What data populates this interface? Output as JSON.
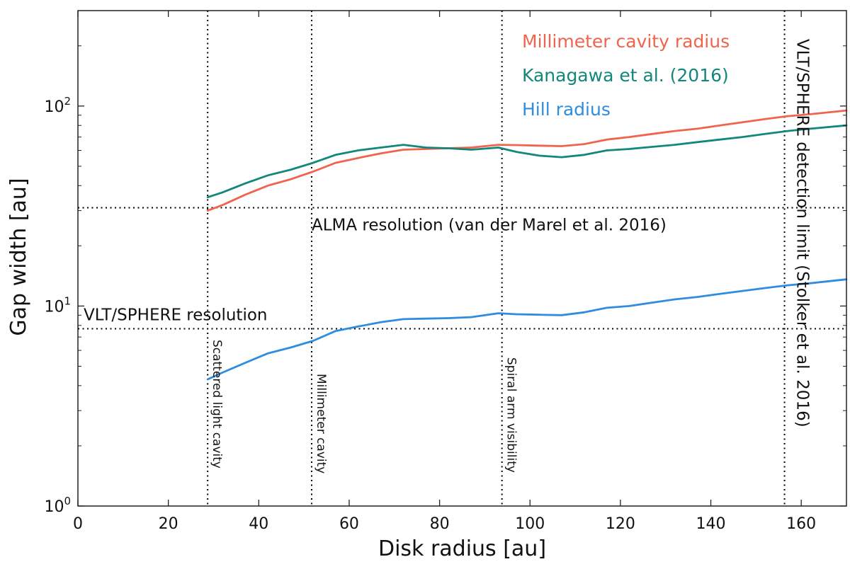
{
  "chart_data": {
    "type": "line",
    "xlabel": "Disk radius [au]",
    "ylabel": "Gap width [au]",
    "xlim": [
      0,
      170
    ],
    "ylim": [
      1,
      300
    ],
    "yscale": "log",
    "xticks": [
      0,
      20,
      40,
      60,
      80,
      100,
      120,
      140,
      160
    ],
    "yticks": [
      {
        "value": 1,
        "base": "10",
        "exp": "0"
      },
      {
        "value": 10,
        "base": "10",
        "exp": "1"
      },
      {
        "value": 100,
        "base": "10",
        "exp": "2"
      }
    ],
    "series": [
      {
        "name": "Millimeter cavity radius",
        "color": "#f0644e",
        "x": [
          28.7,
          32,
          37,
          42,
          47,
          52,
          57,
          62,
          67,
          72,
          77,
          82,
          87,
          93,
          97,
          102,
          107,
          112,
          117,
          122,
          127,
          132,
          137,
          142,
          147,
          152,
          157,
          162,
          170
        ],
        "y": [
          30,
          32,
          36,
          40,
          43,
          47,
          52,
          55,
          58,
          60.5,
          61,
          61.5,
          62,
          64,
          63.8,
          63.4,
          63,
          64.5,
          68,
          70,
          72.5,
          75,
          77,
          80,
          83,
          86,
          89,
          91,
          95
        ]
      },
      {
        "name": "Kanagawa et al. (2016)",
        "color": "#13877a",
        "x": [
          28.7,
          32,
          37,
          42,
          47,
          52,
          57,
          62,
          67,
          72,
          77,
          82,
          87,
          93,
          97,
          102,
          107,
          112,
          117,
          122,
          127,
          132,
          137,
          142,
          147,
          152,
          157,
          162,
          170
        ],
        "y": [
          35,
          37,
          41,
          45,
          48,
          52,
          57,
          60,
          62,
          64,
          62,
          61.5,
          60.5,
          62,
          59,
          56.5,
          55.5,
          57,
          60,
          61,
          62.5,
          64,
          66,
          68,
          70,
          72.5,
          75,
          77,
          80
        ]
      },
      {
        "name": "Hill radius",
        "color": "#2f8de0",
        "x": [
          28.7,
          32,
          37,
          42,
          47,
          52,
          57,
          62,
          67,
          72,
          77,
          82,
          87,
          93,
          97,
          102,
          107,
          112,
          117,
          122,
          127,
          132,
          137,
          142,
          147,
          152,
          157,
          162,
          170
        ],
        "y": [
          4.3,
          4.65,
          5.2,
          5.8,
          6.2,
          6.7,
          7.5,
          7.9,
          8.3,
          8.6,
          8.65,
          8.7,
          8.8,
          9.2,
          9.1,
          9.05,
          9.0,
          9.3,
          9.8,
          10.0,
          10.4,
          10.8,
          11.1,
          11.5,
          11.9,
          12.3,
          12.7,
          13.0,
          13.6
        ]
      }
    ],
    "legend_placement": "top-right",
    "annotations": {
      "vertical_lines": [
        {
          "x": 28.7,
          "label": "Scattered light cavity"
        },
        {
          "x": 51.7,
          "label": "Millimeter cavity"
        },
        {
          "x": 93.8,
          "label": "Spiral arm visibility"
        },
        {
          "x": 156.3,
          "label": "VLT/SPHERE detection limit (Stolker et al. 2016)"
        }
      ],
      "horizontal_lines": [
        {
          "y": 31,
          "label": "ALMA resolution (van der Marel et al. 2016)"
        },
        {
          "y": 7.7,
          "label": "VLT/SPHERE resolution"
        }
      ]
    }
  }
}
